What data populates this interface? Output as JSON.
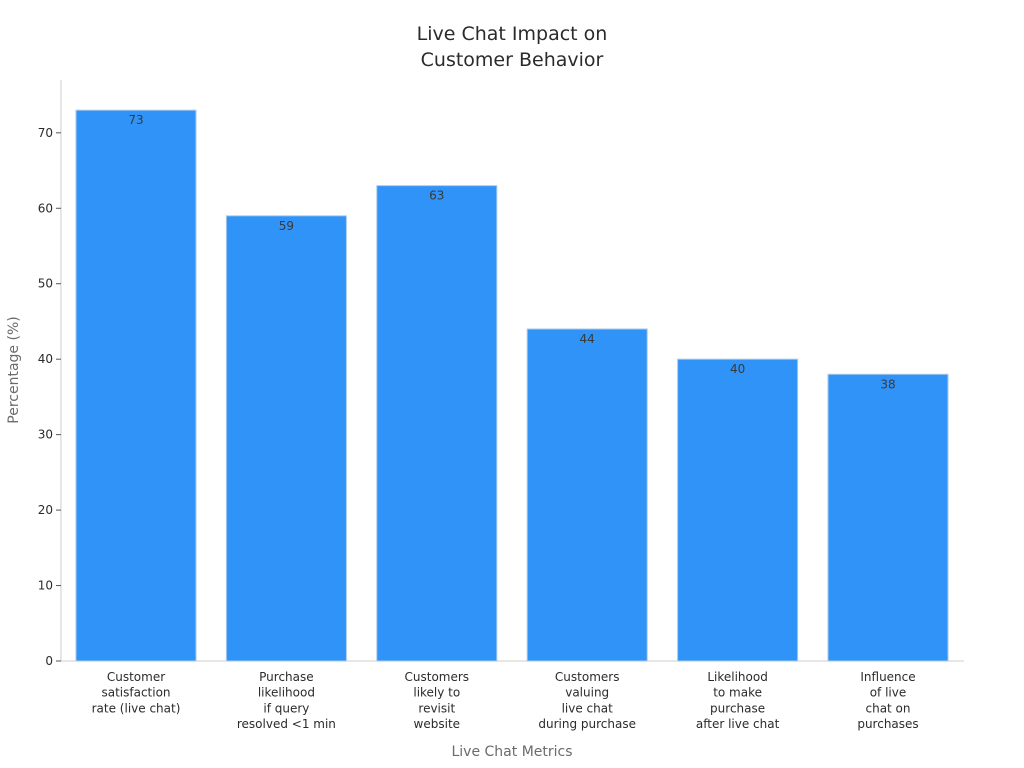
{
  "chart_data": {
    "type": "bar",
    "title_lines": [
      "Live Chat Impact on",
      "Customer Behavior"
    ],
    "xlabel": "Live Chat Metrics",
    "ylabel": "Percentage (%)",
    "categories": [
      [
        "Customer",
        "satisfaction",
        "rate (live chat)"
      ],
      [
        "Purchase",
        "likelihood",
        "if query",
        "resolved <1 min"
      ],
      [
        "Customers",
        "likely to",
        "revisit",
        "website"
      ],
      [
        "Customers",
        "valuing",
        "live chat",
        "during purchase"
      ],
      [
        "Likelihood",
        "to make",
        "purchase",
        "after live chat"
      ],
      [
        "Influence",
        "of live",
        "chat on",
        "purchases"
      ]
    ],
    "values": [
      73,
      59,
      63,
      44,
      40,
      38
    ],
    "ylim": [
      0,
      77
    ],
    "yticks": [
      0,
      10,
      20,
      30,
      40,
      50,
      60,
      70
    ],
    "grid": false,
    "legend": "none",
    "bar_color": "#3093f7",
    "bar_edge_color": "#aac8ea"
  }
}
